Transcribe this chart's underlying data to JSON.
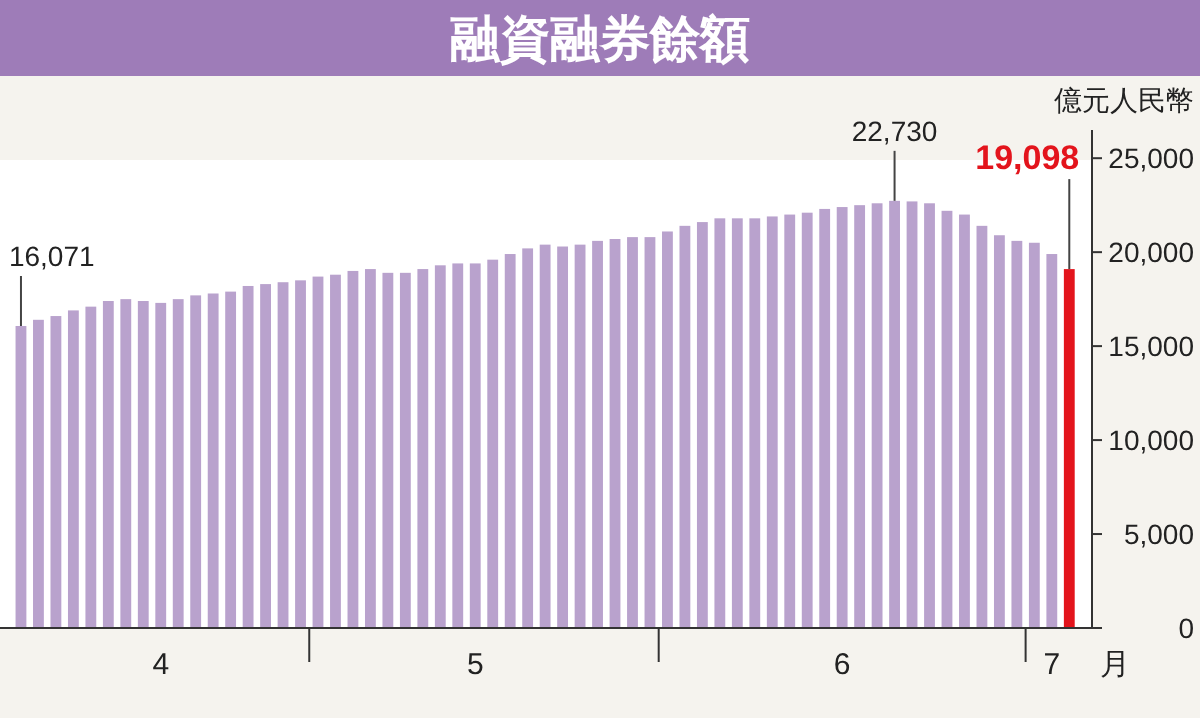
{
  "chart_data": {
    "type": "bar",
    "title": "融資融券餘額",
    "ylabel": "億元人民幣",
    "xlabel": "月",
    "categories": [
      null,
      null,
      null,
      null,
      null,
      null,
      null,
      null,
      "4",
      null,
      null,
      null,
      null,
      null,
      null,
      null,
      null,
      null,
      null,
      null,
      null,
      null,
      null,
      null,
      null,
      null,
      "5",
      null,
      null,
      null,
      null,
      null,
      null,
      null,
      null,
      null,
      null,
      null,
      null,
      null,
      null,
      null,
      null,
      null,
      null,
      null,
      null,
      "6",
      null,
      null,
      null,
      null,
      null,
      null,
      null,
      null,
      null,
      null,
      null,
      "7",
      null
    ],
    "values": [
      16071,
      16400,
      16600,
      16900,
      17100,
      17400,
      17500,
      17400,
      17300,
      17500,
      17700,
      17800,
      17900,
      18200,
      18300,
      18400,
      18500,
      18700,
      18800,
      19000,
      19100,
      18900,
      18900,
      19100,
      19300,
      19400,
      19400,
      19600,
      19900,
      20200,
      20400,
      20300,
      20400,
      20600,
      20700,
      20800,
      20800,
      21100,
      21400,
      21600,
      21800,
      21800,
      21800,
      21900,
      22000,
      22100,
      22300,
      22400,
      22500,
      22600,
      22730,
      22700,
      22600,
      22200,
      22000,
      21400,
      20900,
      20600,
      20500,
      19900,
      19098
    ],
    "colors": [
      "#b9a2cd",
      "#b9a2cd",
      "#b9a2cd",
      "#b9a2cd",
      "#b9a2cd",
      "#b9a2cd",
      "#b9a2cd",
      "#b9a2cd",
      "#b9a2cd",
      "#b9a2cd",
      "#b9a2cd",
      "#b9a2cd",
      "#b9a2cd",
      "#b9a2cd",
      "#b9a2cd",
      "#b9a2cd",
      "#b9a2cd",
      "#b9a2cd",
      "#b9a2cd",
      "#b9a2cd",
      "#b9a2cd",
      "#b9a2cd",
      "#b9a2cd",
      "#b9a2cd",
      "#b9a2cd",
      "#b9a2cd",
      "#b9a2cd",
      "#b9a2cd",
      "#b9a2cd",
      "#b9a2cd",
      "#b9a2cd",
      "#b9a2cd",
      "#b9a2cd",
      "#b9a2cd",
      "#b9a2cd",
      "#b9a2cd",
      "#b9a2cd",
      "#b9a2cd",
      "#b9a2cd",
      "#b9a2cd",
      "#b9a2cd",
      "#b9a2cd",
      "#b9a2cd",
      "#b9a2cd",
      "#b9a2cd",
      "#b9a2cd",
      "#b9a2cd",
      "#b9a2cd",
      "#b9a2cd",
      "#b9a2cd",
      "#b9a2cd",
      "#b9a2cd",
      "#b9a2cd",
      "#b9a2cd",
      "#b9a2cd",
      "#b9a2cd",
      "#b9a2cd",
      "#b9a2cd",
      "#b9a2cd",
      "#b9a2cd",
      "#e3141c"
    ],
    "value_labels": [
      "16,071",
      null,
      null,
      null,
      null,
      null,
      null,
      null,
      null,
      null,
      null,
      null,
      null,
      null,
      null,
      null,
      null,
      null,
      null,
      null,
      null,
      null,
      null,
      null,
      null,
      null,
      null,
      null,
      null,
      null,
      null,
      null,
      null,
      null,
      null,
      null,
      null,
      null,
      null,
      null,
      null,
      null,
      null,
      null,
      null,
      null,
      null,
      null,
      null,
      null,
      "22,730",
      null,
      null,
      null,
      null,
      null,
      null,
      null,
      null,
      null,
      "19,098"
    ],
    "ylim": [
      0,
      26500
    ],
    "yticks": [
      0,
      {
        "value": 5000,
        "label": "5,000"
      },
      {
        "value": 10000,
        "label": "10,000"
      },
      {
        "value": 15000,
        "label": "15,000"
      },
      {
        "value": 20000,
        "label": "20,000"
      },
      {
        "value": 25000,
        "label": "25,000"
      }
    ]
  }
}
